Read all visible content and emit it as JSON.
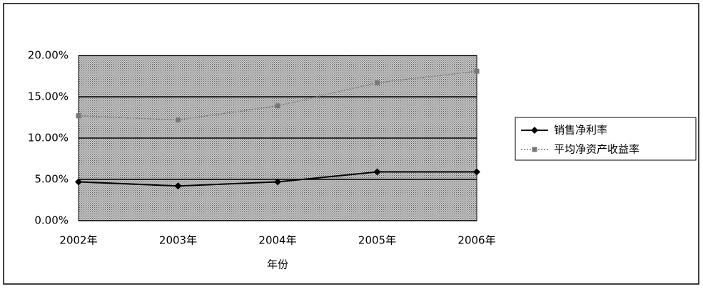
{
  "chart_data": {
    "type": "line",
    "categories": [
      "2002年",
      "2003年",
      "2004年",
      "2005年",
      "2006年"
    ],
    "x_label": "年份",
    "series": [
      {
        "name": "销售净利率",
        "color": "#000000",
        "values": [
          4.7,
          4.2,
          4.7,
          5.9,
          5.9
        ]
      },
      {
        "name": "平均净资产收益率",
        "color": "#777777",
        "values": [
          12.7,
          12.2,
          13.9,
          16.7,
          18.1
        ]
      }
    ],
    "ylim": [
      0,
      20
    ],
    "yticks": [
      {
        "value": 0,
        "label": "0.00%"
      },
      {
        "value": 5,
        "label": "5.00%"
      },
      {
        "value": 10,
        "label": "10.00%"
      },
      {
        "value": 15,
        "label": "15.00%"
      },
      {
        "value": 20,
        "label": "20.00%"
      }
    ],
    "grid": true,
    "legend": "right"
  }
}
